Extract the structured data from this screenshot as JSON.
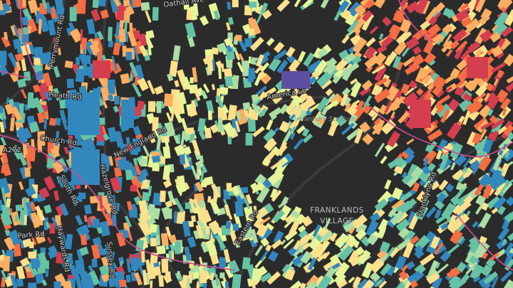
{
  "map": {
    "street_labels": [
      "Oathall Ave",
      "Perrymount Rd",
      "Heath Rd",
      "Church Rd",
      "New England Rd",
      "Hazelgrove Rd",
      "South Rd",
      "America Ln",
      "Park Rd",
      "Haywards Rd",
      "Sussex Rd",
      "Eastern Rd",
      "Franklynn Rd",
      "A272"
    ],
    "place_labels": [
      "Hanbury Stadium"
    ],
    "area_label": [
      "FRANKLANDS",
      "VILLAGE"
    ]
  }
}
